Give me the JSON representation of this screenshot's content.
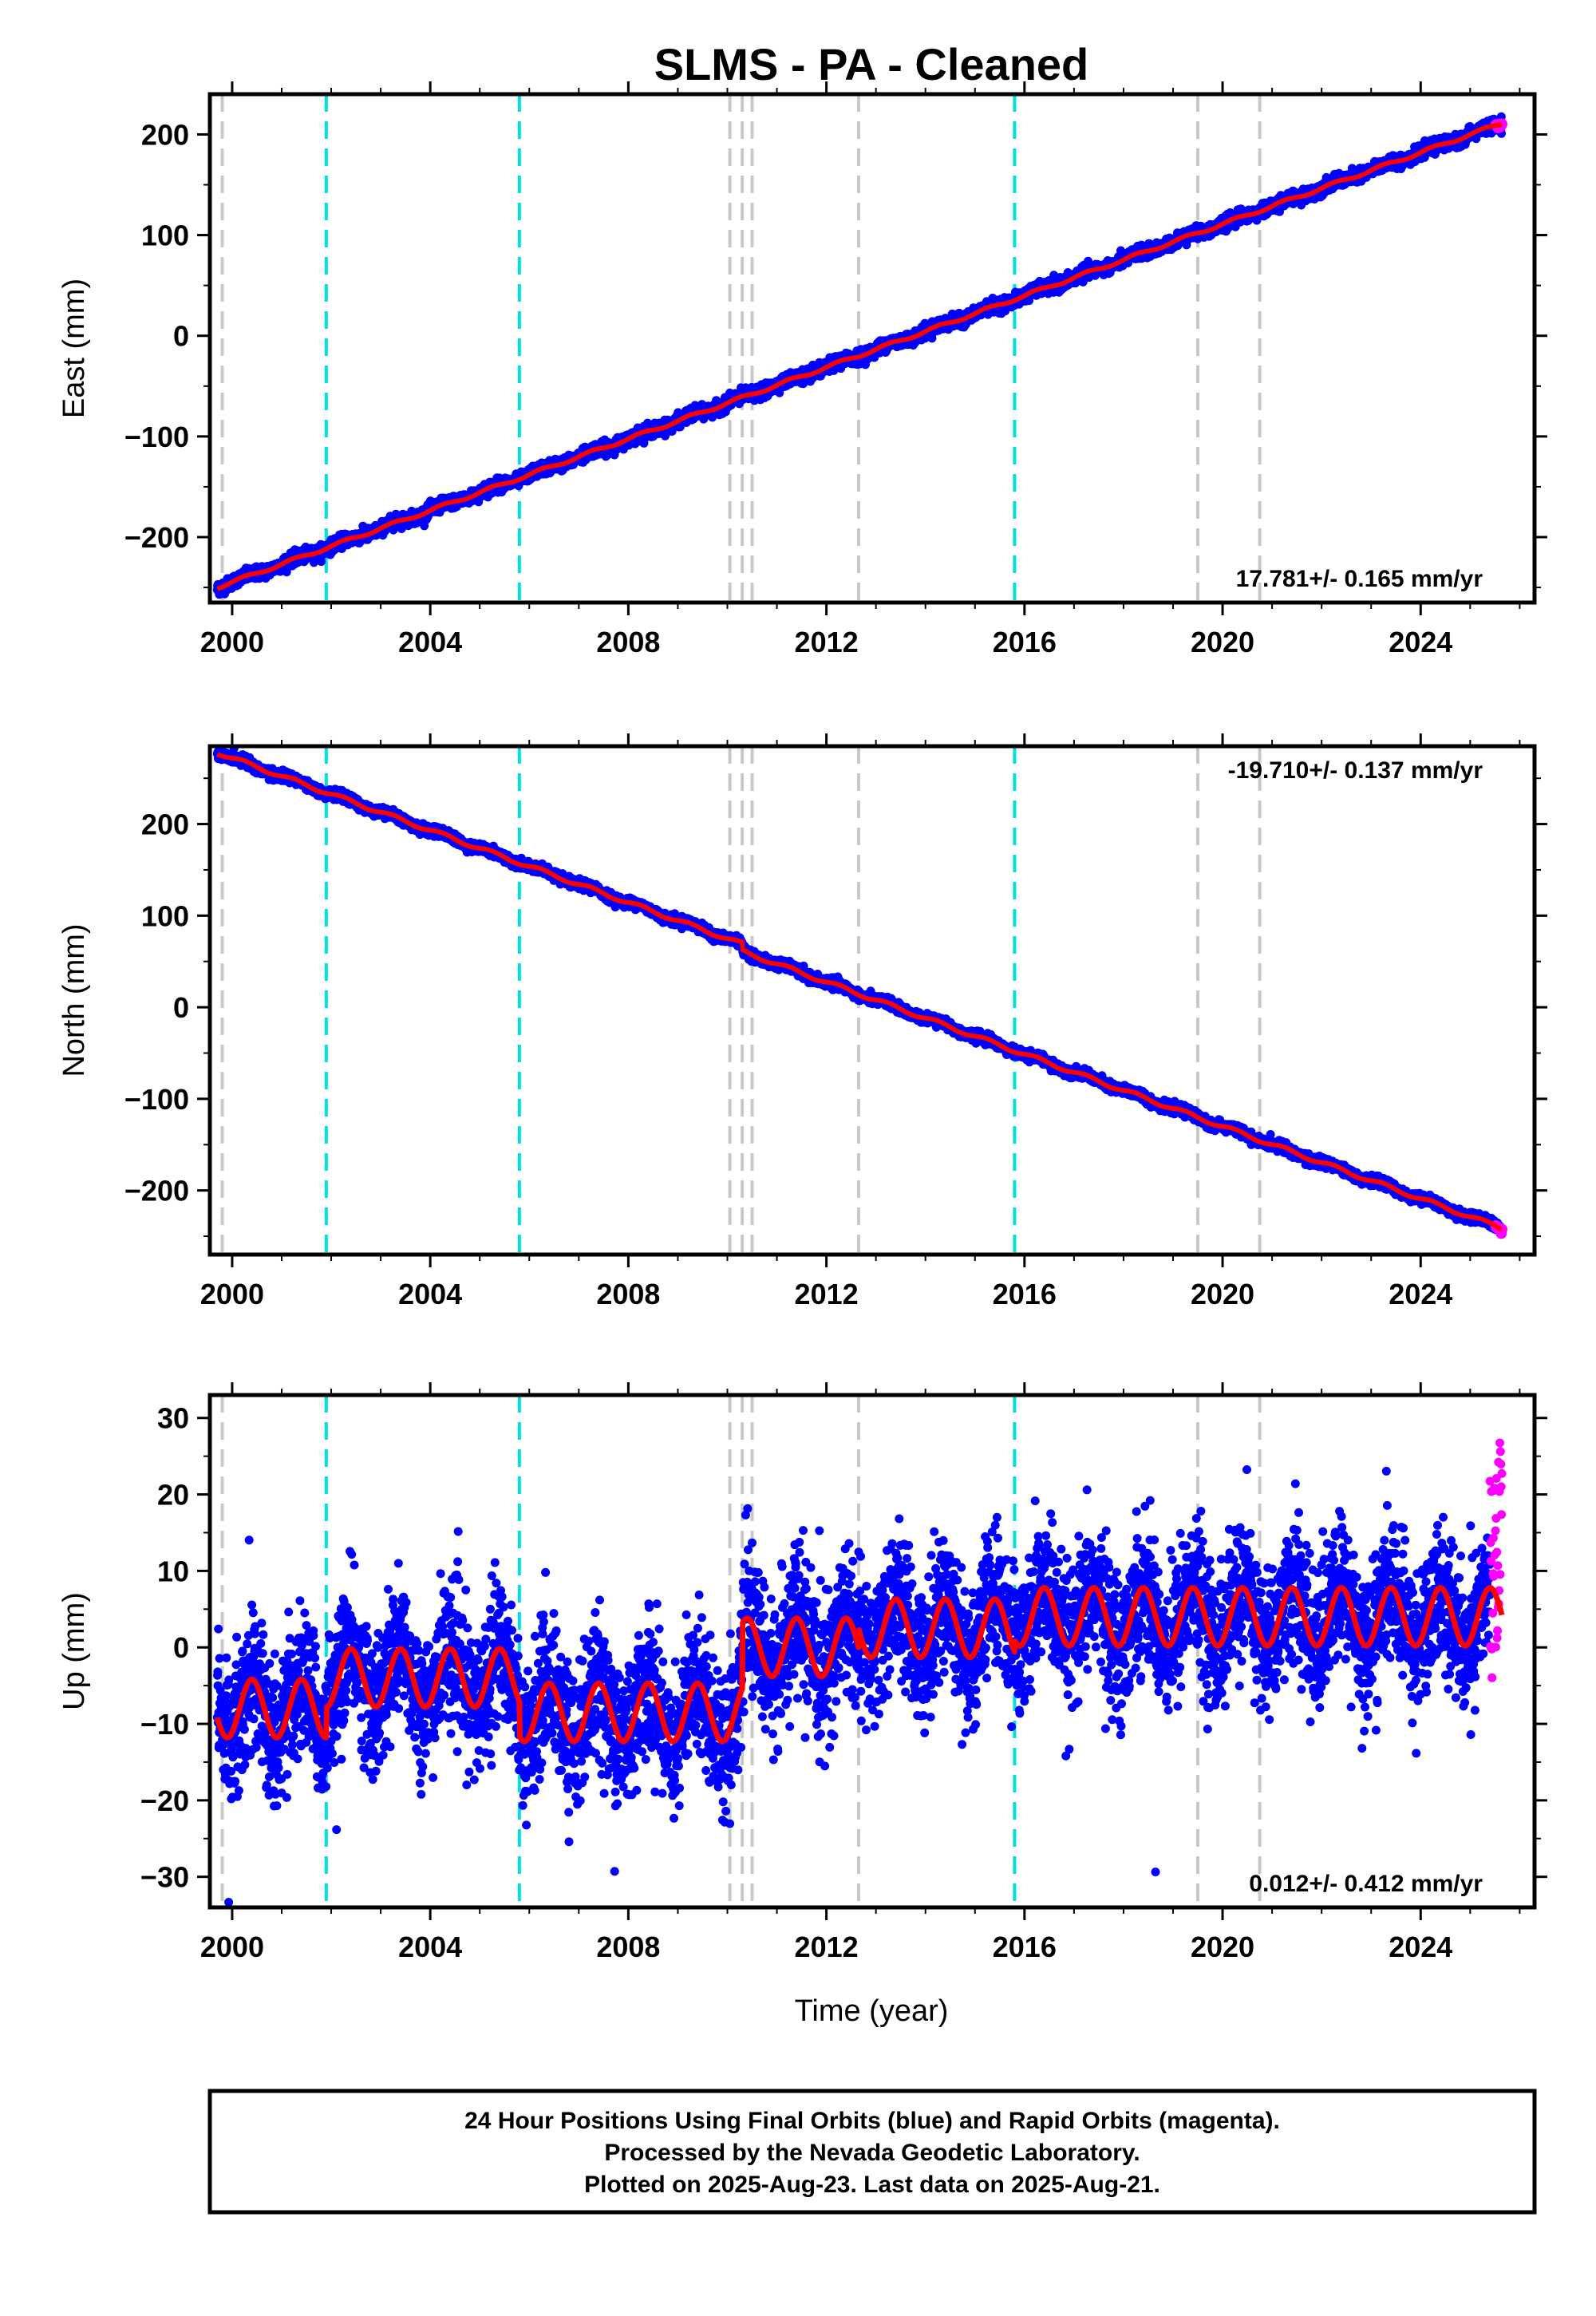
{
  "chart_data": {
    "type": "scatter",
    "title": "SLMS  - PA - Cleaned",
    "x_ticks": [
      2000,
      2004,
      2008,
      2012,
      2016,
      2020,
      2024
    ],
    "x_tick_labels": [
      "2000",
      "2004",
      "2008",
      "2012",
      "2016",
      "2020",
      "2024"
    ],
    "xlim": [
      1999.55,
      2026.3
    ],
    "xlabel": "Time (year)",
    "event_lines": [
      {
        "year": 1999.8,
        "color": "#c8c8c8"
      },
      {
        "year": 2001.9,
        "color": "#00e0e0"
      },
      {
        "year": 2005.8,
        "color": "#00e0e0"
      },
      {
        "year": 2010.05,
        "color": "#c8c8c8"
      },
      {
        "year": 2010.3,
        "color": "#c8c8c8"
      },
      {
        "year": 2010.5,
        "color": "#c8c8c8"
      },
      {
        "year": 2012.65,
        "color": "#c8c8c8"
      },
      {
        "year": 2015.8,
        "color": "#00e0e0"
      },
      {
        "year": 2019.5,
        "color": "#c8c8c8"
      },
      {
        "year": 2020.75,
        "color": "#c8c8c8"
      }
    ],
    "colors": {
      "final_orbits": "#0000ff",
      "rapid_orbits": "#ff00ff",
      "model": "#ff0000"
    },
    "panels": [
      {
        "ylabel": "East (mm)",
        "ylim": [
          -265,
          240
        ],
        "y_ticks": [
          -200,
          -100,
          0,
          100,
          200
        ],
        "y_tick_labels": [
          "−200",
          "−100",
          "0",
          "100",
          "200"
        ],
        "rate_label": "17.781+/- 0.165 mm/yr",
        "rate_position": "bottom-right",
        "model": {
          "start": 1999.7,
          "end": 2025.64,
          "y0": -250,
          "rate": 17.781,
          "annual_amp": 1.5,
          "breaks": []
        },
        "scatter_sd": 3,
        "rapid_sd": 1.5
      },
      {
        "ylabel": "North (mm)",
        "ylim": [
          -270,
          285
        ],
        "y_ticks": [
          -200,
          -100,
          0,
          100,
          200
        ],
        "y_tick_labels": [
          "−200",
          "−100",
          "0",
          "100",
          "200"
        ],
        "rate_label": "-19.710+/- 0.137 mm/yr",
        "rate_position": "top-right",
        "model": {
          "start": 1999.7,
          "end": 2025.64,
          "y0": 278,
          "rate": -19.71,
          "annual_amp": 2,
          "breaks": [
            {
              "year": 2010.3,
              "offset": -8
            }
          ]
        },
        "scatter_sd": 2.5,
        "rapid_sd": 1.5
      },
      {
        "ylabel": "Up (mm)",
        "ylim": [
          -34,
          33
        ],
        "y_ticks": [
          -30,
          -20,
          -10,
          0,
          10,
          20,
          30
        ],
        "y_tick_labels": [
          "−30",
          "−20",
          "−10",
          "0",
          "10",
          "20",
          "30"
        ],
        "rate_label": "0.012+/- 0.412 mm/yr",
        "rate_position": "bottom-right",
        "model_segments": [
          {
            "start": 1999.7,
            "end": 2001.9,
            "base": -8
          },
          {
            "start": 2001.9,
            "end": 2005.8,
            "base": -4
          },
          {
            "start": 2005.8,
            "end": 2010.3,
            "base": -8.5
          },
          {
            "start": 2010.3,
            "end": 2012.65,
            "base": 0
          },
          {
            "start": 2012.65,
            "end": 2015.8,
            "base": 2.5
          },
          {
            "start": 2015.8,
            "end": 2025.64,
            "base": 4
          }
        ],
        "annual_amp": 3.8,
        "scatter_sd": 4.5,
        "rapid": {
          "start": 2025.4,
          "end": 2025.64,
          "ymin": -5,
          "ymax": 27
        }
      }
    ]
  },
  "footer": {
    "line1": "24 Hour Positions Using Final Orbits (blue) and Rapid Orbits (magenta).",
    "line2": "Processed by the Nevada Geodetic Laboratory.",
    "line3": "Plotted on 2025-Aug-23. Last data on 2025-Aug-21."
  }
}
